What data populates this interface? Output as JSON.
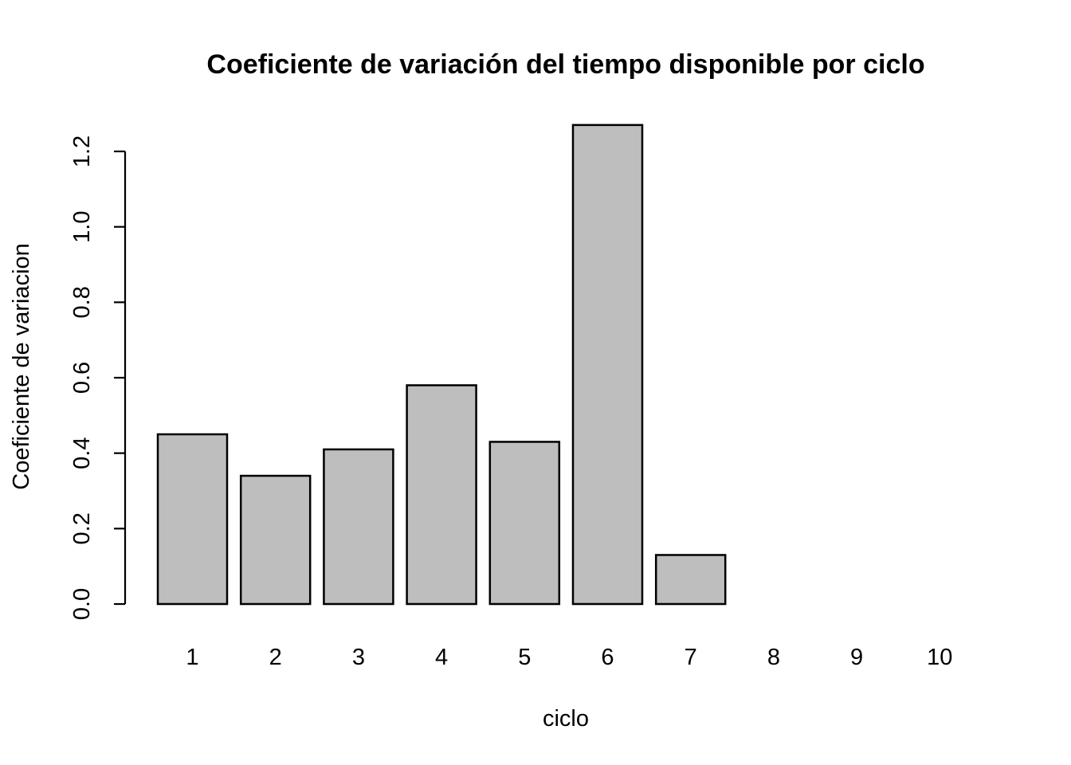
{
  "chart_data": {
    "type": "bar",
    "title": "Coeficiente de variación del tiempo disponible por ciclo",
    "xlabel": "ciclo",
    "ylabel": "Coeficiente de variacion",
    "categories": [
      "1",
      "2",
      "3",
      "4",
      "5",
      "6",
      "7",
      "8",
      "9",
      "10"
    ],
    "values": [
      0.45,
      0.34,
      0.41,
      0.58,
      0.43,
      1.27,
      0.13,
      0,
      0,
      0
    ],
    "y_ticks": [
      "0.0",
      "0.2",
      "0.4",
      "0.6",
      "0.8",
      "1.0",
      "1.2"
    ],
    "ylim": [
      0,
      1.27
    ],
    "grid": false,
    "colors": {
      "bar_fill": "#bebebe",
      "bar_stroke": "#000000"
    }
  }
}
